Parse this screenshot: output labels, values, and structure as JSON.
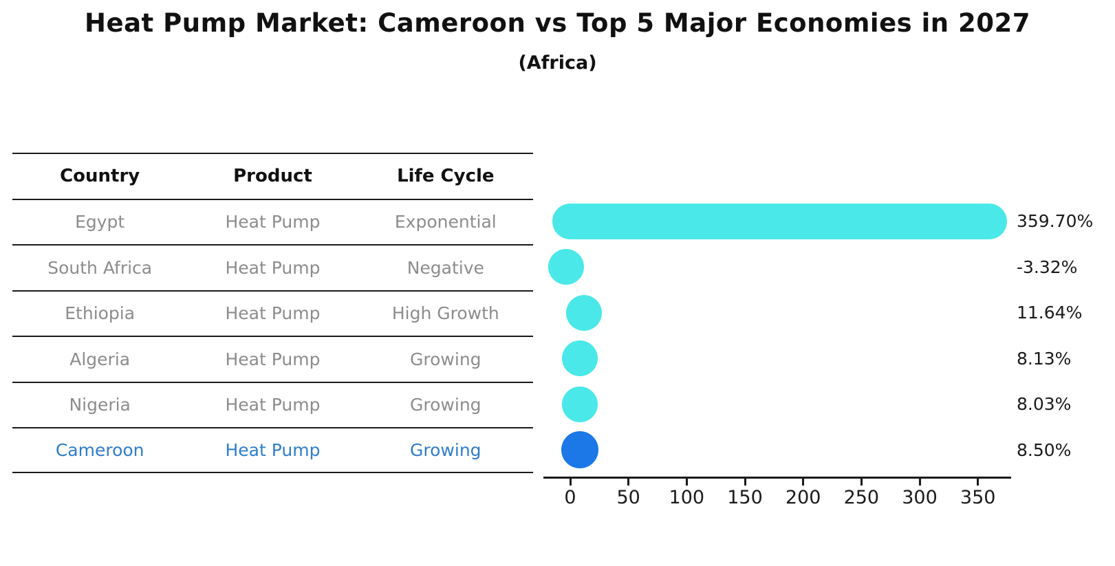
{
  "header": {
    "title": "Heat Pump Market: Cameroon vs Top 5 Major Economies in 2027",
    "subtitle": "(Africa)"
  },
  "table": {
    "headers": [
      "Country",
      "Product",
      "Life Cycle"
    ],
    "rows": [
      {
        "country": "Egypt",
        "product": "Heat Pump",
        "life_cycle": "Exponential",
        "highlight": false
      },
      {
        "country": "South Africa",
        "product": "Heat Pump",
        "life_cycle": "Negative",
        "highlight": false
      },
      {
        "country": "Ethiopia",
        "product": "Heat Pump",
        "life_cycle": "High Growth",
        "highlight": false
      },
      {
        "country": "Algeria",
        "product": "Heat Pump",
        "life_cycle": "Growing",
        "highlight": false
      },
      {
        "country": "Nigeria",
        "product": "Heat Pump",
        "life_cycle": "Growing",
        "highlight": false
      },
      {
        "country": "Cameroon",
        "product": "Heat Pump",
        "life_cycle": "Growing",
        "highlight": true
      }
    ]
  },
  "chart_data": {
    "type": "bar",
    "orientation": "horizontal",
    "title": "Heat Pump Market: Cameroon vs Top 5 Major Economies in 2027",
    "subtitle": "(Africa)",
    "categories": [
      "Egypt",
      "South Africa",
      "Ethiopia",
      "Algeria",
      "Nigeria",
      "Cameroon"
    ],
    "values": [
      359.7,
      -3.32,
      11.64,
      8.13,
      8.03,
      8.5
    ],
    "value_labels": [
      "359.70%",
      "-3.32%",
      "11.64%",
      "8.13%",
      "8.03%",
      "8.50%"
    ],
    "x_ticks": [
      0,
      50,
      100,
      150,
      200,
      250,
      300,
      350
    ],
    "xlim": [
      -23,
      379
    ],
    "grid": false,
    "legend": false,
    "bar_color": "#4AE8E8",
    "highlight_category": "Cameroon",
    "highlight_color": "#1B78E6",
    "highlight_text_color": "#2E7DCA",
    "row_text_color": "#8C8C8C",
    "axis_color": "#1A1A1A"
  }
}
